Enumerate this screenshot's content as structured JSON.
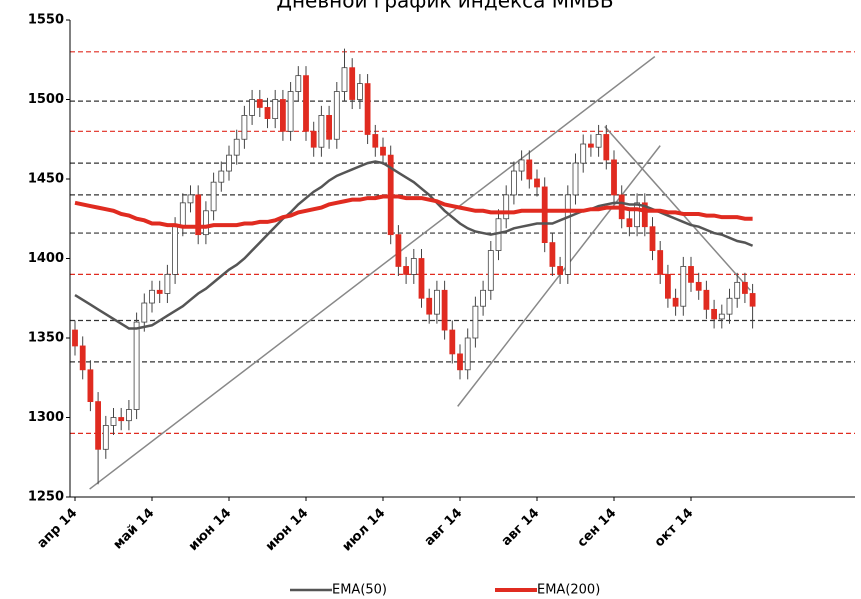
{
  "chart_data": {
    "type": "candlestick",
    "title": "Дневной график индекса ММВБ",
    "categories": [
      "апр 14",
      null,
      null,
      null,
      null,
      null,
      null,
      null,
      null,
      null,
      "май 14",
      null,
      null,
      null,
      null,
      null,
      null,
      null,
      null,
      null,
      "июн 14",
      null,
      null,
      null,
      null,
      null,
      null,
      null,
      null,
      null,
      "июн 14",
      null,
      null,
      null,
      null,
      null,
      null,
      null,
      null,
      null,
      "июл 14",
      null,
      null,
      null,
      null,
      null,
      null,
      null,
      null,
      null,
      "авг 14",
      null,
      null,
      null,
      null,
      null,
      null,
      null,
      null,
      null,
      "авг 14",
      null,
      null,
      null,
      null,
      null,
      null,
      null,
      null,
      null,
      "сен 14",
      null,
      null,
      null,
      null,
      null,
      null,
      null,
      null,
      null,
      "окт 14",
      null,
      null,
      null,
      null,
      null,
      null,
      null,
      null
    ],
    "open": [
      1355,
      1345,
      1330,
      1310,
      1280,
      1295,
      1300,
      1298,
      1305,
      1360,
      1372,
      1380,
      1378,
      1390,
      1420,
      1435,
      1440,
      1415,
      1430,
      1448,
      1455,
      1465,
      1475,
      1490,
      1500,
      1495,
      1488,
      1500,
      1480,
      1505,
      1515,
      1480,
      1470,
      1490,
      1475,
      1505,
      1520,
      1500,
      1510,
      1478,
      1470,
      1465,
      1415,
      1395,
      1390,
      1400,
      1375,
      1365,
      1380,
      1355,
      1340,
      1330,
      1350,
      1370,
      1380,
      1405,
      1425,
      1440,
      1455,
      1462,
      1450,
      1445,
      1410,
      1395,
      1390,
      1440,
      1460,
      1472,
      1470,
      1478,
      1462,
      1440,
      1425,
      1420,
      1435,
      1420,
      1405,
      1390,
      1375,
      1370,
      1395,
      1385,
      1380,
      1368,
      1362,
      1365,
      1375,
      1385,
      1378
    ],
    "high": [
      1361,
      1351,
      1336,
      1316,
      1301,
      1306,
      1306,
      1311,
      1366,
      1378,
      1386,
      1386,
      1396,
      1426,
      1441,
      1446,
      1446,
      1436,
      1454,
      1461,
      1471,
      1481,
      1496,
      1506,
      1506,
      1501,
      1506,
      1506,
      1511,
      1521,
      1521,
      1486,
      1496,
      1496,
      1511,
      1532,
      1526,
      1516,
      1516,
      1484,
      1476,
      1471,
      1421,
      1401,
      1406,
      1406,
      1381,
      1386,
      1386,
      1361,
      1346,
      1356,
      1376,
      1386,
      1411,
      1431,
      1446,
      1461,
      1468,
      1468,
      1456,
      1451,
      1416,
      1401,
      1446,
      1466,
      1478,
      1478,
      1484,
      1484,
      1468,
      1446,
      1431,
      1441,
      1441,
      1426,
      1411,
      1396,
      1381,
      1401,
      1401,
      1391,
      1386,
      1374,
      1371,
      1381,
      1391,
      1391,
      1384
    ],
    "low": [
      1339,
      1324,
      1304,
      1258,
      1274,
      1289,
      1292,
      1292,
      1299,
      1354,
      1366,
      1372,
      1372,
      1384,
      1414,
      1429,
      1409,
      1409,
      1424,
      1442,
      1449,
      1459,
      1469,
      1484,
      1489,
      1482,
      1482,
      1474,
      1474,
      1499,
      1474,
      1464,
      1464,
      1469,
      1469,
      1499,
      1494,
      1494,
      1472,
      1464,
      1459,
      1409,
      1389,
      1384,
      1384,
      1369,
      1359,
      1359,
      1349,
      1334,
      1324,
      1324,
      1344,
      1364,
      1374,
      1399,
      1419,
      1434,
      1449,
      1444,
      1439,
      1404,
      1389,
      1384,
      1384,
      1434,
      1454,
      1464,
      1464,
      1456,
      1434,
      1419,
      1414,
      1414,
      1414,
      1399,
      1384,
      1369,
      1364,
      1364,
      1379,
      1374,
      1362,
      1356,
      1356,
      1359,
      1369,
      1372,
      1356
    ],
    "close": [
      1345,
      1330,
      1310,
      1280,
      1295,
      1300,
      1298,
      1305,
      1360,
      1372,
      1380,
      1378,
      1390,
      1420,
      1435,
      1440,
      1415,
      1430,
      1448,
      1455,
      1465,
      1475,
      1490,
      1500,
      1495,
      1488,
      1500,
      1480,
      1505,
      1515,
      1480,
      1470,
      1490,
      1475,
      1505,
      1520,
      1500,
      1510,
      1478,
      1470,
      1465,
      1415,
      1395,
      1390,
      1400,
      1375,
      1365,
      1380,
      1355,
      1340,
      1330,
      1350,
      1370,
      1380,
      1405,
      1425,
      1440,
      1455,
      1462,
      1450,
      1445,
      1410,
      1395,
      1390,
      1440,
      1460,
      1472,
      1470,
      1478,
      1462,
      1440,
      1425,
      1420,
      1435,
      1420,
      1405,
      1390,
      1375,
      1370,
      1395,
      1385,
      1380,
      1368,
      1362,
      1365,
      1375,
      1385,
      1378,
      1370
    ],
    "up_color": "#ffffff",
    "down_color": "#e02b20",
    "series": [
      {
        "name": "EMA(50)",
        "color": "#555555",
        "values": [
          1377,
          1374,
          1371,
          1368,
          1365,
          1362,
          1359,
          1356,
          1356,
          1357,
          1358,
          1361,
          1364,
          1367,
          1370,
          1374,
          1378,
          1381,
          1385,
          1389,
          1393,
          1396,
          1400,
          1405,
          1410,
          1415,
          1420,
          1425,
          1429,
          1434,
          1438,
          1442,
          1445,
          1449,
          1452,
          1454,
          1456,
          1458,
          1460,
          1461,
          1460,
          1457,
          1454,
          1451,
          1448,
          1444,
          1440,
          1435,
          1430,
          1426,
          1422,
          1419,
          1417,
          1416,
          1415,
          1416,
          1417,
          1419,
          1420,
          1421,
          1422,
          1422,
          1422,
          1424,
          1426,
          1428,
          1430,
          1431,
          1433,
          1434,
          1435,
          1435,
          1434,
          1434,
          1433,
          1431,
          1429,
          1427,
          1425,
          1423,
          1421,
          1420,
          1418,
          1416,
          1415,
          1413,
          1411,
          1410,
          1408
        ]
      },
      {
        "name": "EMA(200)",
        "color": "#e02b20",
        "values": [
          1435,
          1434,
          1433,
          1432,
          1431,
          1430,
          1428,
          1427,
          1425,
          1424,
          1422,
          1422,
          1421,
          1421,
          1420,
          1420,
          1420,
          1420,
          1421,
          1421,
          1421,
          1421,
          1422,
          1422,
          1423,
          1423,
          1424,
          1426,
          1427,
          1429,
          1430,
          1431,
          1432,
          1434,
          1435,
          1436,
          1437,
          1437,
          1438,
          1438,
          1439,
          1439,
          1439,
          1438,
          1438,
          1438,
          1437,
          1436,
          1434,
          1433,
          1432,
          1431,
          1430,
          1430,
          1429,
          1429,
          1429,
          1429,
          1430,
          1430,
          1430,
          1430,
          1430,
          1430,
          1430,
          1430,
          1430,
          1431,
          1431,
          1432,
          1432,
          1432,
          1431,
          1431,
          1430,
          1430,
          1430,
          1429,
          1429,
          1428,
          1428,
          1428,
          1427,
          1427,
          1426,
          1426,
          1426,
          1425,
          1425
        ]
      }
    ],
    "hlines": [
      {
        "value": 1530,
        "color": "#e02b20"
      },
      {
        "value": 1499,
        "color": "#333333"
      },
      {
        "value": 1480,
        "color": "#e02b20"
      },
      {
        "value": 1460,
        "color": "#333333"
      },
      {
        "value": 1440,
        "color": "#333333"
      },
      {
        "value": 1416,
        "color": "#333333"
      },
      {
        "value": 1390,
        "color": "#e02b20"
      },
      {
        "value": 1361,
        "color": "#333333"
      },
      {
        "value": 1335,
        "color": "#333333"
      },
      {
        "value": 1290,
        "color": "#e02b20"
      }
    ],
    "trend_lines": [
      {
        "x": [
          1.9,
          75.3
        ],
        "y": [
          1255,
          1527
        ]
      },
      {
        "x": [
          49.7,
          76
        ],
        "y": [
          1307,
          1471
        ]
      },
      {
        "x": [
          68.8,
          87.7
        ],
        "y": [
          1483,
          1380
        ]
      }
    ],
    "trend_color": "#888888",
    "ylim": [
      1250,
      1550
    ],
    "yticks": [
      1250,
      1300,
      1350,
      1400,
      1450,
      1500,
      1550
    ]
  }
}
